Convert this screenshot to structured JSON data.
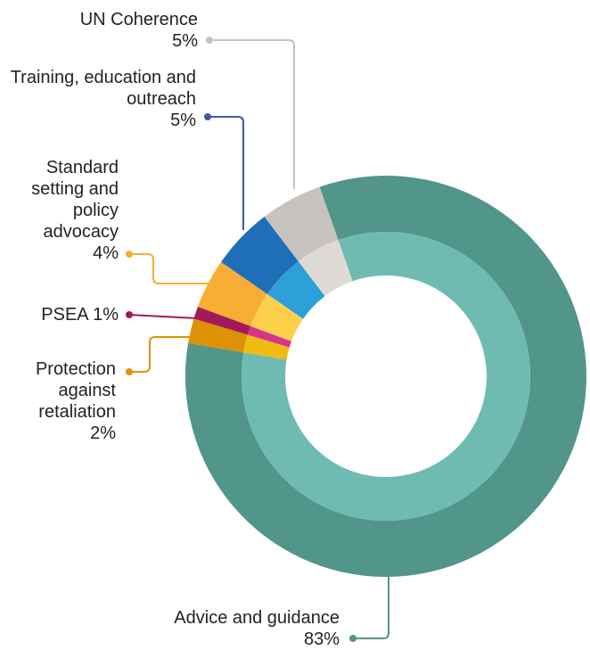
{
  "chart_data": {
    "type": "donut",
    "categories": [
      "Advice and guidance",
      "Protection against retaliation",
      "PSEA",
      "Standard setting and policy advocacy",
      "Training, education and outreach",
      "UN Coherence"
    ],
    "values": [
      83,
      2,
      1,
      4,
      5,
      5
    ],
    "value_labels": [
      "83%",
      "2%",
      "1%",
      "4%",
      "5%",
      "5%"
    ],
    "colors": [
      "#52958a",
      "#dd9206",
      "#a3195b",
      "#f8ad35",
      "#1f6fb8",
      "#c7c2bd"
    ],
    "inner_colors": [
      "#6fbbb3",
      "#f0bb12",
      "#d6338a",
      "#fdd04c",
      "#2d9fd9",
      "#dedad6"
    ],
    "connector_colors": [
      "#52958a",
      "#dd9206",
      "#a3195b",
      "#f8ad35",
      "#3e5aa8",
      "#c7c2bd"
    ]
  }
}
